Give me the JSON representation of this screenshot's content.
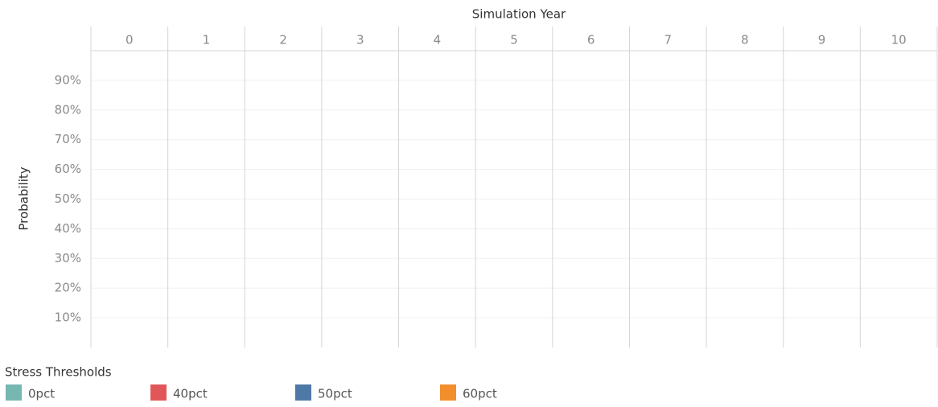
{
  "chart_data": {
    "type": "line",
    "x_label": "Simulation Year",
    "y_label": "Probability",
    "categories": [
      "0",
      "1",
      "2",
      "3",
      "4",
      "5",
      "6",
      "7",
      "8",
      "9",
      "10"
    ],
    "ylim": [
      0,
      100
    ],
    "yticks": [
      {
        "value": 10,
        "label": "10%"
      },
      {
        "value": 20,
        "label": "20%"
      },
      {
        "value": 30,
        "label": "30%"
      },
      {
        "value": 40,
        "label": "40%"
      },
      {
        "value": 50,
        "label": "50%"
      },
      {
        "value": 60,
        "label": "60%"
      },
      {
        "value": 70,
        "label": "70%"
      },
      {
        "value": 80,
        "label": "80%"
      },
      {
        "value": 90,
        "label": "90%"
      }
    ],
    "grid": true,
    "legend_title": "Stress Thresholds",
    "series": [
      {
        "name": "0pct",
        "color": "#76b7b2"
      },
      {
        "name": "40pct",
        "color": "#e15759"
      },
      {
        "name": "50pct",
        "color": "#4e79a7"
      },
      {
        "name": "60pct",
        "color": "#f28e2b"
      }
    ]
  }
}
